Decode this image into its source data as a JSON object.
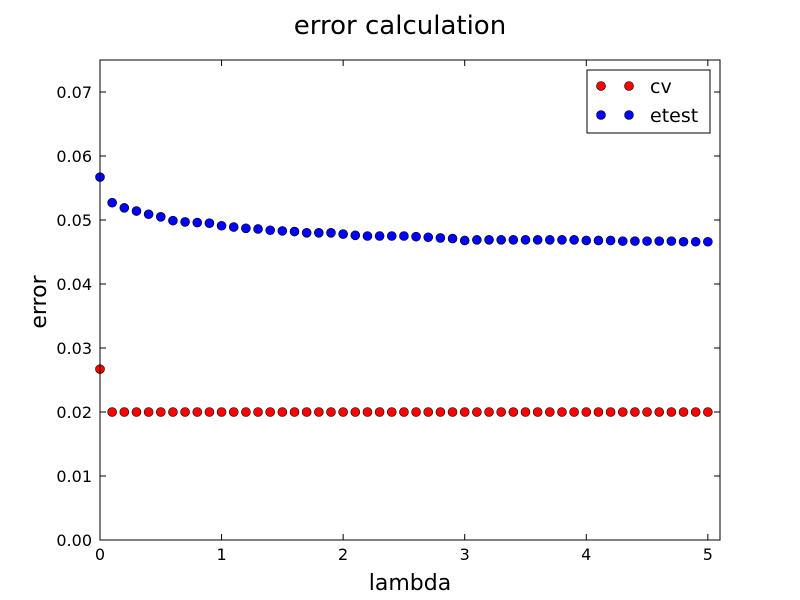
{
  "chart_data": {
    "type": "scatter",
    "title": "error calculation",
    "xlabel": "lambda",
    "ylabel": "error",
    "xlim": [
      0,
      5.1
    ],
    "ylim": [
      0,
      0.075
    ],
    "x_ticks": [
      0,
      1,
      2,
      3,
      4,
      5
    ],
    "x_tick_labels": [
      "0",
      "1",
      "2",
      "3",
      "4",
      "5"
    ],
    "y_ticks": [
      0,
      0.01,
      0.02,
      0.03,
      0.04,
      0.05,
      0.06,
      0.07
    ],
    "y_tick_labels": [
      "0.00",
      "0.01",
      "0.02",
      "0.03",
      "0.04",
      "0.05",
      "0.06",
      "0.07"
    ],
    "grid": false,
    "legend": "top-right",
    "x": [
      0,
      0.1,
      0.2,
      0.3,
      0.4,
      0.5,
      0.6,
      0.7,
      0.8,
      0.9,
      1.0,
      1.1,
      1.2,
      1.3,
      1.4,
      1.5,
      1.6,
      1.7,
      1.8,
      1.9,
      2.0,
      2.1,
      2.2,
      2.3,
      2.4,
      2.5,
      2.6,
      2.7,
      2.8,
      2.9,
      3.0,
      3.1,
      3.2,
      3.3,
      3.4,
      3.5,
      3.6,
      3.7,
      3.8,
      3.9,
      4.0,
      4.1,
      4.2,
      4.3,
      4.4,
      4.5,
      4.6,
      4.7,
      4.8,
      4.9,
      5.0
    ],
    "series": [
      {
        "name": "cv",
        "color": "#ff0000",
        "values": [
          0.0267,
          0.02,
          0.02,
          0.02,
          0.02,
          0.02,
          0.02,
          0.02,
          0.02,
          0.02,
          0.02,
          0.02,
          0.02,
          0.02,
          0.02,
          0.02,
          0.02,
          0.02,
          0.02,
          0.02,
          0.02,
          0.02,
          0.02,
          0.02,
          0.02,
          0.02,
          0.02,
          0.02,
          0.02,
          0.02,
          0.02,
          0.02,
          0.02,
          0.02,
          0.02,
          0.02,
          0.02,
          0.02,
          0.02,
          0.02,
          0.02,
          0.02,
          0.02,
          0.02,
          0.02,
          0.02,
          0.02,
          0.02,
          0.02,
          0.02,
          0.02
        ]
      },
      {
        "name": "etest",
        "color": "#0000ff",
        "values": [
          0.0567,
          0.0527,
          0.0519,
          0.0514,
          0.0509,
          0.0505,
          0.0499,
          0.0497,
          0.0496,
          0.0495,
          0.0491,
          0.0489,
          0.0487,
          0.0486,
          0.0484,
          0.0483,
          0.0482,
          0.048,
          0.048,
          0.048,
          0.0478,
          0.0476,
          0.0475,
          0.0475,
          0.0475,
          0.0475,
          0.0474,
          0.0473,
          0.0472,
          0.0471,
          0.0468,
          0.0469,
          0.0469,
          0.0469,
          0.0469,
          0.0469,
          0.0469,
          0.0469,
          0.0469,
          0.0469,
          0.0468,
          0.0468,
          0.0468,
          0.0467,
          0.0467,
          0.0467,
          0.0467,
          0.0467,
          0.0466,
          0.0466,
          0.0466
        ]
      }
    ]
  }
}
